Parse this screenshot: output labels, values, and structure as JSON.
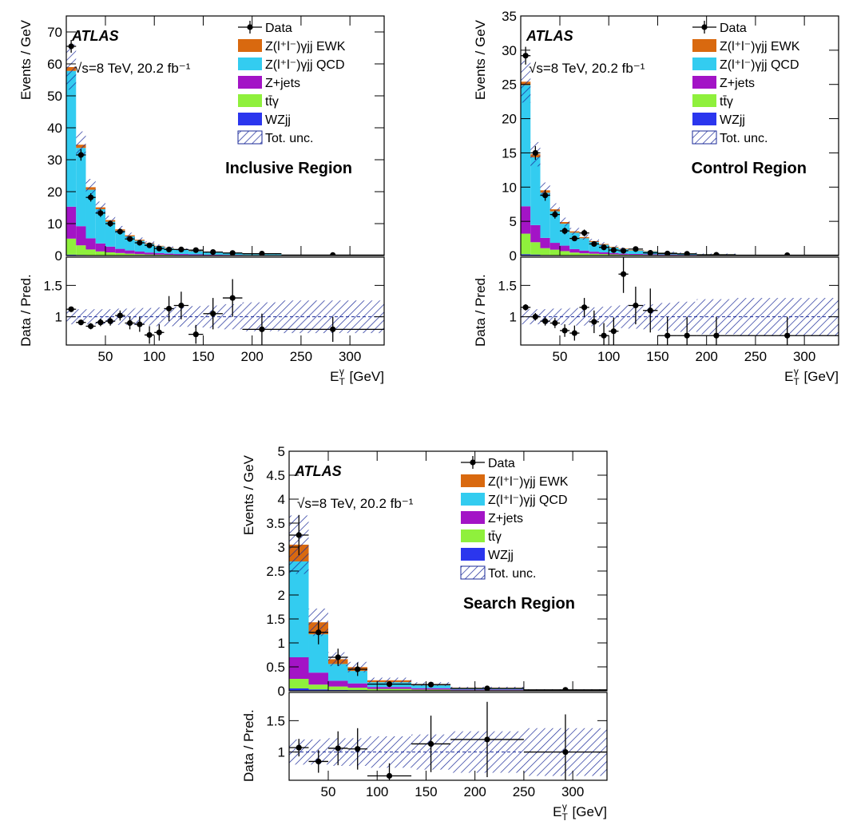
{
  "atlas_label": "ATLAS",
  "energy_label": "√s=8 TeV, 20.2  fb⁻¹",
  "ylabel_main": "Events / GeV",
  "ylabel_ratio": "Data / Pred.",
  "xlabel": "E_T^γ [GeV]",
  "legend": [
    {
      "label": "Data",
      "kind": "marker"
    },
    {
      "label": "Z(l⁺l⁻)γjj EWK",
      "color": "#d9690f",
      "kind": "box"
    },
    {
      "label": "Z(l⁺l⁻)γjj QCD",
      "color": "#33ccf0",
      "kind": "box"
    },
    {
      "label": "Z+jets",
      "color": "#a314c6",
      "kind": "box"
    },
    {
      "label": "tt̄γ",
      "color": "#8ff03c",
      "kind": "box"
    },
    {
      "label": "WZjj",
      "color": "#2b36ee",
      "kind": "box"
    },
    {
      "label": "Tot. unc.",
      "color": "#1a2a99",
      "kind": "hatch"
    }
  ],
  "chart_data": [
    {
      "type": "bar",
      "region": "Inclusive Region",
      "xlim": [
        10,
        335
      ],
      "xticks": [
        50,
        100,
        150,
        200,
        250,
        300
      ],
      "ylim": [
        0,
        75
      ],
      "yticks": [
        0,
        10,
        20,
        30,
        40,
        50,
        60,
        70
      ],
      "ratio_ylim": [
        0.55,
        1.95
      ],
      "ratio_yticks": [
        1,
        1.5
      ],
      "bins": [
        [
          10,
          20
        ],
        [
          20,
          30
        ],
        [
          30,
          40
        ],
        [
          40,
          50
        ],
        [
          50,
          60
        ],
        [
          60,
          70
        ],
        [
          70,
          80
        ],
        [
          80,
          90
        ],
        [
          90,
          100
        ],
        [
          100,
          110
        ],
        [
          110,
          120
        ],
        [
          120,
          135
        ],
        [
          135,
          150
        ],
        [
          150,
          170
        ],
        [
          170,
          190
        ],
        [
          190,
          230
        ],
        [
          230,
          335
        ]
      ],
      "series": [
        {
          "name": "WZjj",
          "color": "#2b36ee",
          "values": [
            0.3,
            0.2,
            0.1,
            0.1,
            0.1,
            0.1,
            0.1,
            0.05,
            0.05,
            0.05,
            0.05,
            0.03,
            0.03,
            0.02,
            0.02,
            0.01,
            0.005
          ]
        },
        {
          "name": "tt̄γ",
          "color": "#8ff03c",
          "values": [
            5.0,
            3.0,
            1.8,
            1.2,
            0.9,
            0.7,
            0.5,
            0.4,
            0.3,
            0.25,
            0.2,
            0.15,
            0.12,
            0.1,
            0.08,
            0.05,
            0.02
          ]
        },
        {
          "name": "Z+jets",
          "color": "#a314c6",
          "values": [
            10.0,
            6.0,
            3.5,
            2.5,
            1.8,
            1.3,
            1.0,
            0.8,
            0.6,
            0.45,
            0.35,
            0.3,
            0.22,
            0.15,
            0.12,
            0.08,
            0.03
          ]
        },
        {
          "name": "Z(l⁺l⁻)γjj QCD",
          "color": "#33ccf0",
          "values": [
            42.5,
            24.5,
            15.2,
            10.7,
            7.8,
            5.7,
            4.4,
            3.4,
            2.7,
            2.1,
            1.7,
            1.3,
            1.0,
            0.7,
            0.5,
            0.32,
            0.1
          ]
        },
        {
          "name": "Z(l⁺l⁻)γjj EWK",
          "color": "#d9690f",
          "values": [
            1.2,
            1.0,
            0.8,
            0.6,
            0.5,
            0.4,
            0.35,
            0.3,
            0.25,
            0.2,
            0.18,
            0.15,
            0.12,
            0.1,
            0.08,
            0.05,
            0.03
          ]
        }
      ],
      "data": {
        "x": [
          15,
          25,
          35,
          45,
          55,
          65,
          75,
          85,
          95,
          105,
          115,
          127.5,
          142.5,
          160,
          180,
          210,
          282.5
        ],
        "y": [
          65.5,
          31.5,
          18.2,
          13.3,
          10.0,
          7.5,
          5.2,
          4.0,
          3.2,
          2.2,
          1.9,
          1.9,
          1.7,
          1.1,
          0.8,
          0.6,
          0.15
        ],
        "yerr": [
          2.0,
          1.8,
          1.3,
          1.2,
          1.0,
          0.9,
          0.8,
          0.7,
          0.6,
          0.5,
          0.5,
          0.4,
          0.4,
          0.25,
          0.2,
          0.1,
          0.05
        ]
      },
      "ratio": {
        "x": [
          15,
          25,
          35,
          45,
          55,
          65,
          75,
          85,
          95,
          105,
          115,
          127.5,
          142.5,
          160,
          180,
          210,
          282.5
        ],
        "y": [
          1.12,
          0.91,
          0.85,
          0.91,
          0.93,
          1.02,
          0.9,
          0.88,
          0.71,
          0.75,
          1.13,
          1.18,
          0.72,
          1.05,
          1.3,
          0.8,
          0.8
        ],
        "yerr": [
          0.03,
          0.04,
          0.05,
          0.06,
          0.07,
          0.08,
          0.1,
          0.12,
          0.14,
          0.13,
          0.2,
          0.22,
          0.15,
          0.25,
          0.3,
          0.25,
          0.2
        ],
        "unc": [
          0.12,
          0.12,
          0.12,
          0.12,
          0.12,
          0.13,
          0.13,
          0.14,
          0.14,
          0.15,
          0.15,
          0.16,
          0.17,
          0.18,
          0.2,
          0.23,
          0.26
        ]
      }
    },
    {
      "type": "bar",
      "region": "Control Region",
      "xlim": [
        10,
        335
      ],
      "xticks": [
        50,
        100,
        150,
        200,
        250,
        300
      ],
      "ylim": [
        0,
        35
      ],
      "yticks": [
        0,
        5,
        10,
        15,
        20,
        25,
        30,
        35
      ],
      "ratio_ylim": [
        0.55,
        1.95
      ],
      "ratio_yticks": [
        1,
        1.5
      ],
      "bins": [
        [
          10,
          20
        ],
        [
          20,
          30
        ],
        [
          30,
          40
        ],
        [
          40,
          50
        ],
        [
          50,
          60
        ],
        [
          60,
          70
        ],
        [
          70,
          80
        ],
        [
          80,
          90
        ],
        [
          90,
          100
        ],
        [
          100,
          110
        ],
        [
          110,
          120
        ],
        [
          120,
          135
        ],
        [
          135,
          150
        ],
        [
          150,
          170
        ],
        [
          170,
          190
        ],
        [
          190,
          230
        ],
        [
          230,
          335
        ]
      ],
      "series": [
        {
          "name": "WZjj",
          "color": "#2b36ee",
          "values": [
            0.2,
            0.15,
            0.08,
            0.06,
            0.05,
            0.04,
            0.03,
            0.02,
            0.02,
            0.02,
            0.01,
            0.01,
            0.01,
            0.01,
            0.005,
            0.004,
            0.002
          ]
        },
        {
          "name": "tt̄γ",
          "color": "#8ff03c",
          "values": [
            3.0,
            1.8,
            1.0,
            0.8,
            0.6,
            0.4,
            0.3,
            0.25,
            0.2,
            0.15,
            0.12,
            0.1,
            0.08,
            0.06,
            0.04,
            0.03,
            0.01
          ]
        },
        {
          "name": "Z+jets",
          "color": "#a314c6",
          "values": [
            4.0,
            2.5,
            1.5,
            1.0,
            0.8,
            0.5,
            0.4,
            0.3,
            0.25,
            0.2,
            0.15,
            0.12,
            0.1,
            0.08,
            0.06,
            0.04,
            0.01
          ]
        },
        {
          "name": "Z(l⁺l⁻)γjj QCD",
          "color": "#33ccf0",
          "values": [
            17.7,
            9.9,
            6.6,
            4.6,
            3.2,
            2.4,
            1.8,
            1.4,
            1.1,
            0.8,
            0.65,
            0.5,
            0.4,
            0.28,
            0.22,
            0.13,
            0.05
          ]
        },
        {
          "name": "Z(l⁺l⁻)γjj EWK",
          "color": "#d9690f",
          "values": [
            0.5,
            0.45,
            0.35,
            0.3,
            0.25,
            0.2,
            0.17,
            0.15,
            0.12,
            0.1,
            0.08,
            0.07,
            0.06,
            0.04,
            0.03,
            0.02,
            0.01
          ]
        }
      ],
      "data": {
        "x": [
          15,
          25,
          35,
          45,
          55,
          65,
          75,
          85,
          95,
          105,
          115,
          127.5,
          142.5,
          160,
          180,
          210,
          282.5
        ],
        "y": [
          29.2,
          15.0,
          8.8,
          6.0,
          3.6,
          2.5,
          3.3,
          1.7,
          1.2,
          0.8,
          0.7,
          0.95,
          0.4,
          0.3,
          0.25,
          0.1,
          0.05
        ],
        "yerr": [
          1.3,
          1.0,
          0.8,
          0.6,
          0.5,
          0.4,
          0.5,
          0.3,
          0.25,
          0.2,
          0.2,
          0.25,
          0.15,
          0.1,
          0.08,
          0.04,
          0.02
        ]
      },
      "ratio": {
        "x": [
          15,
          25,
          35,
          45,
          55,
          65,
          75,
          85,
          95,
          105,
          115,
          127.5,
          142.5,
          160,
          180,
          210,
          282.5
        ],
        "y": [
          1.15,
          1.0,
          0.93,
          0.9,
          0.78,
          0.74,
          1.15,
          0.92,
          0.7,
          0.77,
          1.68,
          1.18,
          1.1,
          0.7,
          0.7,
          0.7,
          0.7
        ],
        "yerr": [
          0.05,
          0.06,
          0.07,
          0.08,
          0.1,
          0.12,
          0.15,
          0.18,
          0.2,
          0.22,
          0.3,
          0.3,
          0.35,
          0.3,
          0.3,
          0.3,
          0.3
        ],
        "unc": [
          0.12,
          0.12,
          0.12,
          0.13,
          0.13,
          0.14,
          0.14,
          0.15,
          0.16,
          0.17,
          0.18,
          0.19,
          0.2,
          0.22,
          0.24,
          0.28,
          0.3
        ]
      }
    },
    {
      "type": "bar",
      "region": "Search Region",
      "xlim": [
        10,
        335
      ],
      "xticks": [
        50,
        100,
        150,
        200,
        250,
        300
      ],
      "ylim": [
        0,
        5
      ],
      "yticks": [
        0,
        0.5,
        1,
        1.5,
        2,
        2.5,
        3,
        3.5,
        4,
        4.5,
        5
      ],
      "ratio_ylim": [
        0.55,
        1.95
      ],
      "ratio_yticks": [
        1,
        1.5
      ],
      "bins": [
        [
          10,
          30
        ],
        [
          30,
          50
        ],
        [
          50,
          70
        ],
        [
          70,
          90
        ],
        [
          90,
          135
        ],
        [
          135,
          175
        ],
        [
          175,
          250
        ],
        [
          250,
          335
        ]
      ],
      "series": [
        {
          "name": "WZjj",
          "color": "#2b36ee",
          "values": [
            0.05,
            0.03,
            0.02,
            0.015,
            0.01,
            0.005,
            0.002,
            0.001
          ]
        },
        {
          "name": "tt̄γ",
          "color": "#8ff03c",
          "values": [
            0.2,
            0.1,
            0.07,
            0.05,
            0.03,
            0.02,
            0.01,
            0.005
          ]
        },
        {
          "name": "Z+jets",
          "color": "#a314c6",
          "values": [
            0.45,
            0.25,
            0.12,
            0.09,
            0.04,
            0.03,
            0.015,
            0.005
          ]
        },
        {
          "name": "Z(l⁺l⁻)γjj QCD",
          "color": "#33ccf0",
          "values": [
            2.0,
            0.8,
            0.35,
            0.26,
            0.1,
            0.06,
            0.025,
            0.009
          ]
        },
        {
          "name": "Z(l⁺l⁻)γjj EWK",
          "color": "#d9690f",
          "values": [
            0.35,
            0.25,
            0.1,
            0.08,
            0.04,
            0.025,
            0.012,
            0.005
          ]
        }
      ],
      "data": {
        "x": [
          20,
          40,
          60,
          80,
          112.5,
          155,
          212.5,
          292.5
        ],
        "y": [
          3.25,
          1.22,
          0.7,
          0.45,
          0.14,
          0.13,
          0.05,
          0.02
        ],
        "yerr": [
          0.42,
          0.25,
          0.18,
          0.14,
          0.04,
          0.03,
          0.015,
          0.008
        ]
      },
      "ratio": {
        "x": [
          20,
          40,
          60,
          80,
          112.5,
          155,
          212.5,
          292.5
        ],
        "y": [
          1.07,
          0.85,
          1.06,
          1.05,
          0.62,
          1.13,
          1.2,
          1.0
        ],
        "yerr": [
          0.14,
          0.18,
          0.27,
          0.33,
          0.2,
          0.45,
          0.6,
          0.6
        ],
        "unc": [
          0.2,
          0.2,
          0.22,
          0.22,
          0.25,
          0.28,
          0.33,
          0.38
        ]
      }
    }
  ]
}
